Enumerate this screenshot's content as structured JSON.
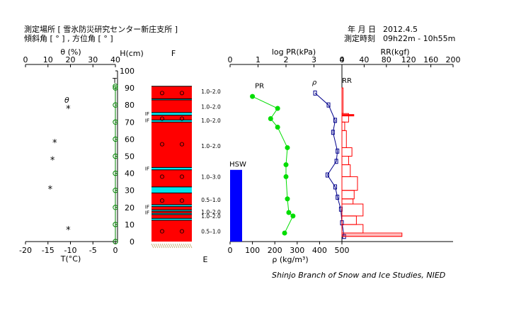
{
  "header": {
    "location_line": "測定場所 [ 雪氷防災研究センター新庄支所 ]",
    "angle_line": "傾斜角 [ ° ] , 方位角 [ ° ]",
    "date_label": "年 月 日",
    "date_value": "2012.4.5",
    "time_label": "測定時刻",
    "time_value": "09h22m - 10h55m"
  },
  "credit": "Shinjo Branch of Snow and Ice Studies, NIED",
  "chart_data": [
    {
      "type": "scatter",
      "id": "temperature-theta",
      "xlabel": "T(°C)",
      "xticks": [
        -20,
        -15,
        -10,
        -5,
        0
      ],
      "xlim": [
        -20,
        0
      ],
      "top_label": "θ (%)",
      "top_ticks": [
        0,
        10,
        20,
        30,
        40
      ],
      "top_lim": [
        0,
        40
      ],
      "ylabel": "H(cm)",
      "yticks": [
        0,
        10,
        20,
        30,
        40,
        50,
        60,
        70,
        80,
        90,
        100
      ],
      "ylim": [
        0,
        100
      ],
      "series": [
        {
          "name": "T",
          "marker": "circle",
          "color": "#008000",
          "points": [
            [
              0,
              0
            ],
            [
              0,
              10
            ],
            [
              0,
              20
            ],
            [
              0,
              30
            ],
            [
              0,
              40
            ],
            [
              0,
              50
            ],
            [
              0,
              60
            ],
            [
              0,
              70
            ],
            [
              0,
              80
            ],
            [
              0,
              90
            ],
            [
              0,
              91
            ]
          ]
        },
        {
          "name": "θ",
          "marker": "asterisk",
          "color": "#000000",
          "points": [
            [
              19,
              78
            ],
            [
              13,
              58
            ],
            [
              12,
              48
            ],
            [
              11,
              31
            ],
            [
              19,
              7
            ]
          ]
        }
      ]
    },
    {
      "type": "table",
      "id": "snow-profile",
      "column_label": "F",
      "snow_depth": 91,
      "layer_color": "#ff0000",
      "ice_color": "#00e5ee",
      "ice_layers": [
        [
          83,
          83.6
        ],
        [
          74,
          75.6
        ],
        [
          70,
          71.2
        ],
        [
          42,
          43.4
        ],
        [
          28.5,
          32
        ],
        [
          20.5,
          21.6
        ],
        [
          17.8,
          18.6
        ],
        [
          15.8,
          16.6
        ],
        [
          12.5,
          13.6
        ]
      ],
      "grain_marks": [
        87,
        72,
        57,
        38,
        24,
        6
      ],
      "if_labels": [
        {
          "label": "IF",
          "h": 75.2
        },
        {
          "label": "IF",
          "h": 71.2
        },
        {
          "label": "IF",
          "h": 43
        },
        {
          "label": "IF",
          "h": 20.6
        },
        {
          "label": "IF",
          "h": 17.3
        }
      ],
      "bottom_label": "E"
    },
    {
      "type": "table",
      "id": "grain-size",
      "rows": [
        {
          "label": "1.0–2.0",
          "h": 88
        },
        {
          "label": "1.0–2.0",
          "h": 79
        },
        {
          "label": "1.0–2.0",
          "h": 71
        },
        {
          "label": "1.0–2.0",
          "h": 56
        },
        {
          "label": "1.0–3.0",
          "h": 38
        },
        {
          "label": "0.5–1.0",
          "h": 24.5
        },
        {
          "label": "1.0–2.0",
          "h": 17.5
        },
        {
          "label": "1.0–2.0",
          "h": 15
        },
        {
          "label": "0.5–1.0",
          "h": 6
        }
      ]
    },
    {
      "type": "line",
      "id": "pr-density-hsw",
      "top_label": "log PR(kPa)",
      "top_ticks": [
        0,
        1,
        2,
        3,
        4
      ],
      "top_lim": [
        0,
        4
      ],
      "xlabel": "ρ (kg/m³)",
      "xticks": [
        0,
        100,
        200,
        300,
        400,
        500
      ],
      "xlim": [
        0,
        500
      ],
      "series": [
        {
          "name": "PR",
          "color": "#00dd00",
          "unit": "log PR",
          "points": [
            [
              0.8,
              85
            ],
            [
              1.7,
              78
            ],
            [
              1.45,
              72
            ],
            [
              1.7,
              67
            ],
            [
              2.05,
              55
            ],
            [
              2.0,
              45
            ],
            [
              2.0,
              38
            ],
            [
              2.05,
              25
            ],
            [
              2.1,
              17
            ],
            [
              2.25,
              15
            ],
            [
              1.95,
              5
            ]
          ]
        },
        {
          "name": "ρ",
          "color": "#00008b",
          "unit": "kg/m³",
          "points": [
            [
              380,
              87
            ],
            [
              440,
              80
            ],
            [
              470,
              71
            ],
            [
              460,
              64
            ],
            [
              480,
              53
            ],
            [
              475,
              47
            ],
            [
              435,
              39
            ],
            [
              470,
              32
            ],
            [
              480,
              26
            ],
            [
              495,
              19
            ],
            [
              500,
              11
            ],
            [
              510,
              3
            ]
          ]
        }
      ],
      "hsw": {
        "label": "HSW",
        "value_mm": 45,
        "height": 42,
        "color": "#0000ff"
      }
    },
    {
      "type": "bar",
      "id": "ram-resistance",
      "top_label": "RR(kgf)",
      "xticks": [
        0,
        40,
        80,
        120,
        160,
        200
      ],
      "xlim": [
        0,
        200
      ],
      "color": "#ff0000",
      "series_name": "RR",
      "steps": [
        {
          "from": 90,
          "to": 75,
          "value": 2
        },
        {
          "from": 75,
          "to": 70,
          "value": 12
        },
        {
          "from": 70,
          "to": 65,
          "value": 5
        },
        {
          "from": 65,
          "to": 55,
          "value": 8
        },
        {
          "from": 55,
          "to": 50,
          "value": 18
        },
        {
          "from": 50,
          "to": 45,
          "value": 12
        },
        {
          "from": 45,
          "to": 38,
          "value": 15
        },
        {
          "from": 38,
          "to": 30,
          "value": 28
        },
        {
          "from": 30,
          "to": 25,
          "value": 22
        },
        {
          "from": 25,
          "to": 22,
          "value": 20
        },
        {
          "from": 22,
          "to": 15,
          "value": 38
        },
        {
          "from": 15,
          "to": 10,
          "value": 26
        },
        {
          "from": 10,
          "to": 5,
          "value": 38
        },
        {
          "from": 5,
          "to": 3,
          "value": 108
        }
      ],
      "spike": {
        "h": 74,
        "value": 22
      }
    }
  ]
}
